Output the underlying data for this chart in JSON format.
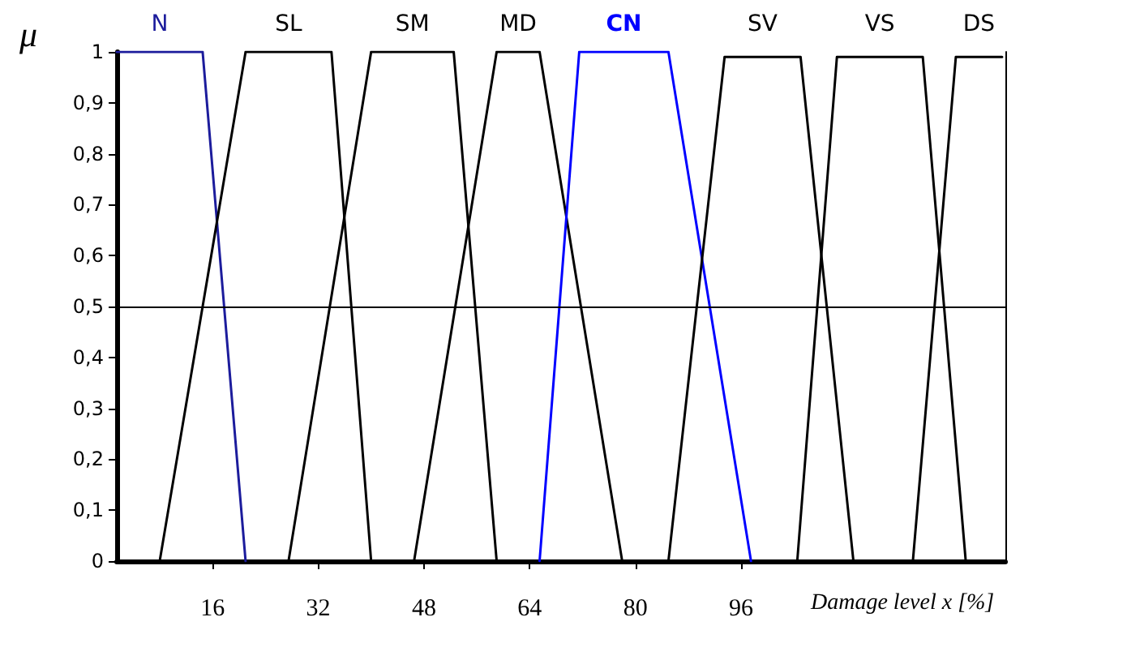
{
  "chart_data": {
    "type": "line",
    "ylabel": "μ",
    "xlabel": "Damage level x [%]",
    "xlim": [
      1.5,
      136
    ],
    "xticks": [
      16,
      32,
      48,
      64,
      80,
      96
    ],
    "ylim": [
      0,
      1
    ],
    "yticks": [
      0,
      {
        "value": 0.1,
        "label": "0,1"
      },
      {
        "value": 0.2,
        "label": "0,2"
      },
      {
        "value": 0.3,
        "label": "0,3"
      },
      {
        "value": 0.4,
        "label": "0,4"
      },
      {
        "value": 0.5,
        "label": "0,5"
      },
      {
        "value": 0.6,
        "label": "0,6"
      },
      {
        "value": 0.7,
        "label": "0,7"
      },
      {
        "value": 0.8,
        "label": "0,8"
      },
      {
        "value": 0.9,
        "label": "0,9"
      },
      1
    ],
    "grid": false,
    "legend": false,
    "marker": "none",
    "line_style": "solid",
    "ref_lines": [
      {
        "axis": "y",
        "value": 0.5,
        "color": "#000000"
      }
    ],
    "series": [
      {
        "name": "N",
        "color": "#1c1c9c",
        "x": [
          1.5,
          14.5,
          21
        ],
        "values": [
          1,
          1,
          0
        ]
      },
      {
        "name": "SL",
        "color": "#000000",
        "x": [
          8,
          21,
          34,
          40
        ],
        "values": [
          0,
          1,
          1,
          0
        ]
      },
      {
        "name": "SM",
        "color": "#000000",
        "x": [
          27.5,
          40,
          52.5,
          59
        ],
        "values": [
          0,
          1,
          1,
          0
        ]
      },
      {
        "name": "MD",
        "color": "#000000",
        "x": [
          46.5,
          59,
          65.5,
          78
        ],
        "values": [
          0,
          1,
          1,
          0
        ]
      },
      {
        "name": "CN",
        "color": "#0000ff",
        "x": [
          65.5,
          71.5,
          85,
          97.5
        ],
        "values": [
          0,
          1,
          1,
          0
        ]
      },
      {
        "name": "SV",
        "color": "#000000",
        "x": [
          85,
          93.5,
          105,
          113
        ],
        "values": [
          0,
          0.99,
          0.99,
          0
        ]
      },
      {
        "name": "VS",
        "color": "#000000",
        "x": [
          104.5,
          110.5,
          123.5,
          130
        ],
        "values": [
          0,
          0.99,
          0.99,
          0
        ]
      },
      {
        "name": "DS",
        "color": "#000000",
        "x": [
          122,
          128.5,
          135.5
        ],
        "values": [
          0,
          0.99,
          0.99
        ]
      }
    ]
  }
}
